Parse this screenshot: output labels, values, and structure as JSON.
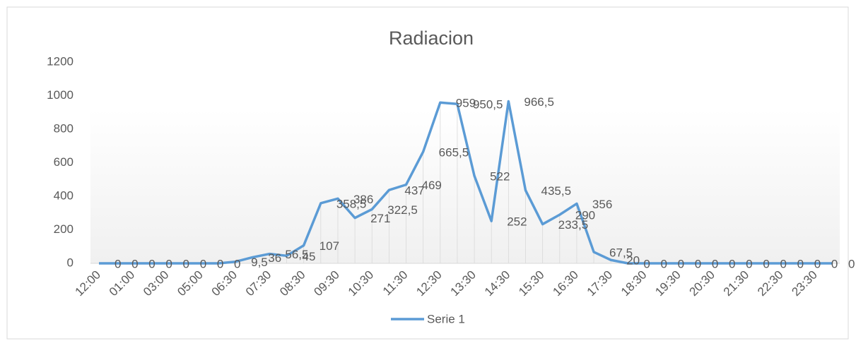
{
  "chart_data": {
    "type": "line",
    "title": "Radiacion",
    "categories": [
      "12:00",
      null,
      "01:00",
      null,
      "03:00",
      null,
      "05:00",
      null,
      "06:30",
      null,
      "07:30",
      null,
      "08:30",
      null,
      "09:30",
      null,
      "10:30",
      null,
      "11:30",
      null,
      "12:30",
      null,
      "13:30",
      null,
      "14:30",
      null,
      "15:30",
      null,
      "16:30",
      null,
      "17:30",
      null,
      "18:30",
      null,
      "19:30",
      null,
      "20:30",
      null,
      "21:30",
      null,
      "22:30",
      null,
      "23:30",
      null
    ],
    "series": [
      {
        "name": "Serie 1",
        "color": "#5b9bd5",
        "values": [
          0,
          0,
          0,
          0,
          0,
          0,
          0,
          0,
          9.5,
          36,
          56.5,
          45,
          107,
          358.5,
          386,
          271,
          322.5,
          437,
          469,
          665.5,
          959,
          950.5,
          522,
          252,
          966.5,
          435.5,
          233.5,
          290,
          356,
          67.5,
          20,
          0,
          0,
          0,
          0,
          0,
          0,
          0,
          0,
          0,
          0,
          0,
          0,
          0
        ],
        "value_labels": [
          "0",
          "0",
          "0",
          "0",
          "0",
          "0",
          "0",
          "0",
          "9,5",
          "36",
          "56,5",
          "45",
          "107",
          "358,5",
          "386",
          "271",
          "322,5",
          "437",
          "469",
          "665,5",
          "959",
          "950,5",
          "522",
          "252",
          "966,5",
          "435,5",
          "233,5",
          "290",
          "356",
          "67,5",
          "20",
          "0",
          "0",
          "0",
          "0",
          "0",
          "0",
          "0",
          "0",
          "0",
          "0",
          "0",
          "0",
          "0"
        ]
      }
    ],
    "ylim": [
      0,
      1200
    ],
    "yticks": [
      0,
      200,
      400,
      600,
      800,
      1000,
      1200
    ],
    "legend": "bottom"
  }
}
